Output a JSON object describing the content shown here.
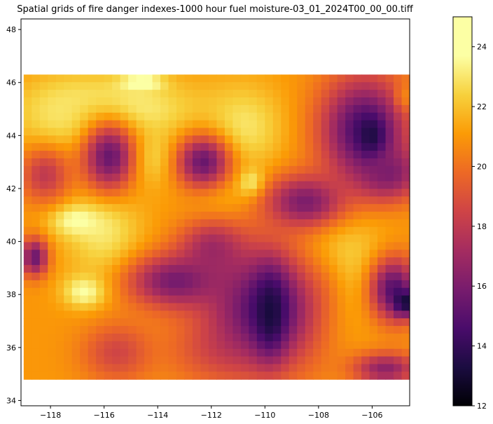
{
  "title": "Spatial grids of fire danger indexes-1000 hour fuel moisture-03_01_2024T00_00_00.tiff",
  "chart_data": {
    "type": "heatmap",
    "title": "Spatial grids of fire danger indexes-1000 hour fuel moisture-03_01_2024T00_00_00.tiff",
    "xlabel": "",
    "ylabel": "",
    "xlim": [
      -119.1,
      -104.6
    ],
    "ylim": [
      33.8,
      48.4
    ],
    "data_extent": {
      "lon": [
        -119.0,
        -104.6
      ],
      "lat": [
        34.8,
        46.3
      ]
    },
    "x_ticks": [
      -118,
      -116,
      -114,
      -112,
      -110,
      -108,
      -106
    ],
    "x_tick_labels": [
      "−118",
      "−116",
      "−114",
      "−112",
      "−110",
      "−108",
      "−106"
    ],
    "y_ticks": [
      34,
      36,
      38,
      40,
      42,
      44,
      46,
      48
    ],
    "y_tick_labels": [
      "34",
      "36",
      "38",
      "40",
      "42",
      "44",
      "46",
      "48"
    ],
    "colormap": "inferno",
    "colorbar": {
      "range": [
        12,
        25
      ],
      "ticks": [
        12,
        14,
        16,
        18,
        20,
        22,
        24
      ],
      "tick_labels": [
        "12",
        "14",
        "16",
        "18",
        "20",
        "22",
        "24"
      ]
    },
    "grid": false,
    "value_features": [
      {
        "kind": "background",
        "value": 21
      },
      {
        "kind": "blob",
        "lon": -115.5,
        "lat": 45.0,
        "rx": 3.0,
        "ry": 1.2,
        "value": 23.5
      },
      {
        "kind": "blob",
        "lon": -117.3,
        "lat": 44.8,
        "rx": 1.8,
        "ry": 1.3,
        "value": 23
      },
      {
        "kind": "blob",
        "lon": -114.6,
        "lat": 46.0,
        "rx": 0.8,
        "ry": 0.3,
        "value": 24.5
      },
      {
        "kind": "blob",
        "lon": -114.4,
        "lat": 43.2,
        "rx": 1.2,
        "ry": 1.1,
        "value": 23
      },
      {
        "kind": "blob",
        "lon": -116.0,
        "lat": 40.3,
        "rx": 1.4,
        "ry": 1.8,
        "value": 23
      },
      {
        "kind": "blob",
        "lon": -117.0,
        "lat": 40.8,
        "rx": 1.0,
        "ry": 0.6,
        "value": 24
      },
      {
        "kind": "blob",
        "lon": -116.7,
        "lat": 38.1,
        "rx": 0.8,
        "ry": 0.6,
        "value": 24
      },
      {
        "kind": "blob",
        "lon": -110.8,
        "lat": 44.3,
        "rx": 1.5,
        "ry": 1.6,
        "value": 23
      },
      {
        "kind": "blob",
        "lon": -111.5,
        "lat": 41.8,
        "rx": 1.3,
        "ry": 1.0,
        "value": 22
      },
      {
        "kind": "blob",
        "lon": -110.5,
        "lat": 42.2,
        "rx": 0.5,
        "ry": 0.5,
        "value": 24
      },
      {
        "kind": "blob",
        "lon": -107.2,
        "lat": 39.0,
        "rx": 1.8,
        "ry": 2.4,
        "value": 23
      },
      {
        "kind": "blob",
        "lon": -107.8,
        "lat": 38.0,
        "rx": 0.9,
        "ry": 1.5,
        "value": 22
      },
      {
        "kind": "blob",
        "lon": -115.8,
        "lat": 43.2,
        "rx": 1.0,
        "ry": 1.3,
        "value": 15.5
      },
      {
        "kind": "blob",
        "lon": -118.2,
        "lat": 42.5,
        "rx": 0.9,
        "ry": 1.0,
        "value": 18
      },
      {
        "kind": "blob",
        "lon": -112.3,
        "lat": 43.0,
        "rx": 1.0,
        "ry": 1.0,
        "value": 15.5
      },
      {
        "kind": "blob",
        "lon": -112.0,
        "lat": 39.8,
        "rx": 1.2,
        "ry": 1.0,
        "value": 17.5
      },
      {
        "kind": "blob",
        "lon": -118.6,
        "lat": 39.4,
        "rx": 0.5,
        "ry": 0.7,
        "value": 15.5
      },
      {
        "kind": "blob",
        "lon": -115.5,
        "lat": 35.8,
        "rx": 1.3,
        "ry": 1.1,
        "value": 18.5
      },
      {
        "kind": "blob",
        "lon": -112.0,
        "lat": 35.8,
        "rx": 1.8,
        "ry": 1.2,
        "value": 19.5
      },
      {
        "kind": "blob",
        "lon": -110.0,
        "lat": 37.5,
        "rx": 2.2,
        "ry": 2.3,
        "value": 14.8
      },
      {
        "kind": "blob",
        "lon": -109.8,
        "lat": 37.3,
        "rx": 0.6,
        "ry": 1.5,
        "value": 13.2
      },
      {
        "kind": "blob",
        "lon": -113.3,
        "lat": 38.5,
        "rx": 1.8,
        "ry": 1.0,
        "value": 15.8
      },
      {
        "kind": "blob",
        "lon": -106.3,
        "lat": 44.2,
        "rx": 1.6,
        "ry": 2.0,
        "value": 14.5
      },
      {
        "kind": "blob",
        "lon": -106.0,
        "lat": 43.8,
        "rx": 0.5,
        "ry": 0.8,
        "value": 13
      },
      {
        "kind": "blob",
        "lon": -105.4,
        "lat": 42.6,
        "rx": 1.2,
        "ry": 1.0,
        "value": 16
      },
      {
        "kind": "blob",
        "lon": -105.2,
        "lat": 38.2,
        "rx": 0.9,
        "ry": 1.2,
        "value": 15
      },
      {
        "kind": "blob",
        "lon": -104.8,
        "lat": 37.7,
        "rx": 0.4,
        "ry": 0.5,
        "value": 13
      },
      {
        "kind": "blob",
        "lon": -105.5,
        "lat": 35.2,
        "rx": 1.2,
        "ry": 0.6,
        "value": 16.5
      },
      {
        "kind": "blob",
        "lon": -108.5,
        "lat": 41.5,
        "rx": 1.5,
        "ry": 1.0,
        "value": 16
      },
      {
        "kind": "blob",
        "lon": -104.8,
        "lat": 45.5,
        "rx": 0.3,
        "ry": 0.5,
        "value": 20.5
      }
    ]
  }
}
